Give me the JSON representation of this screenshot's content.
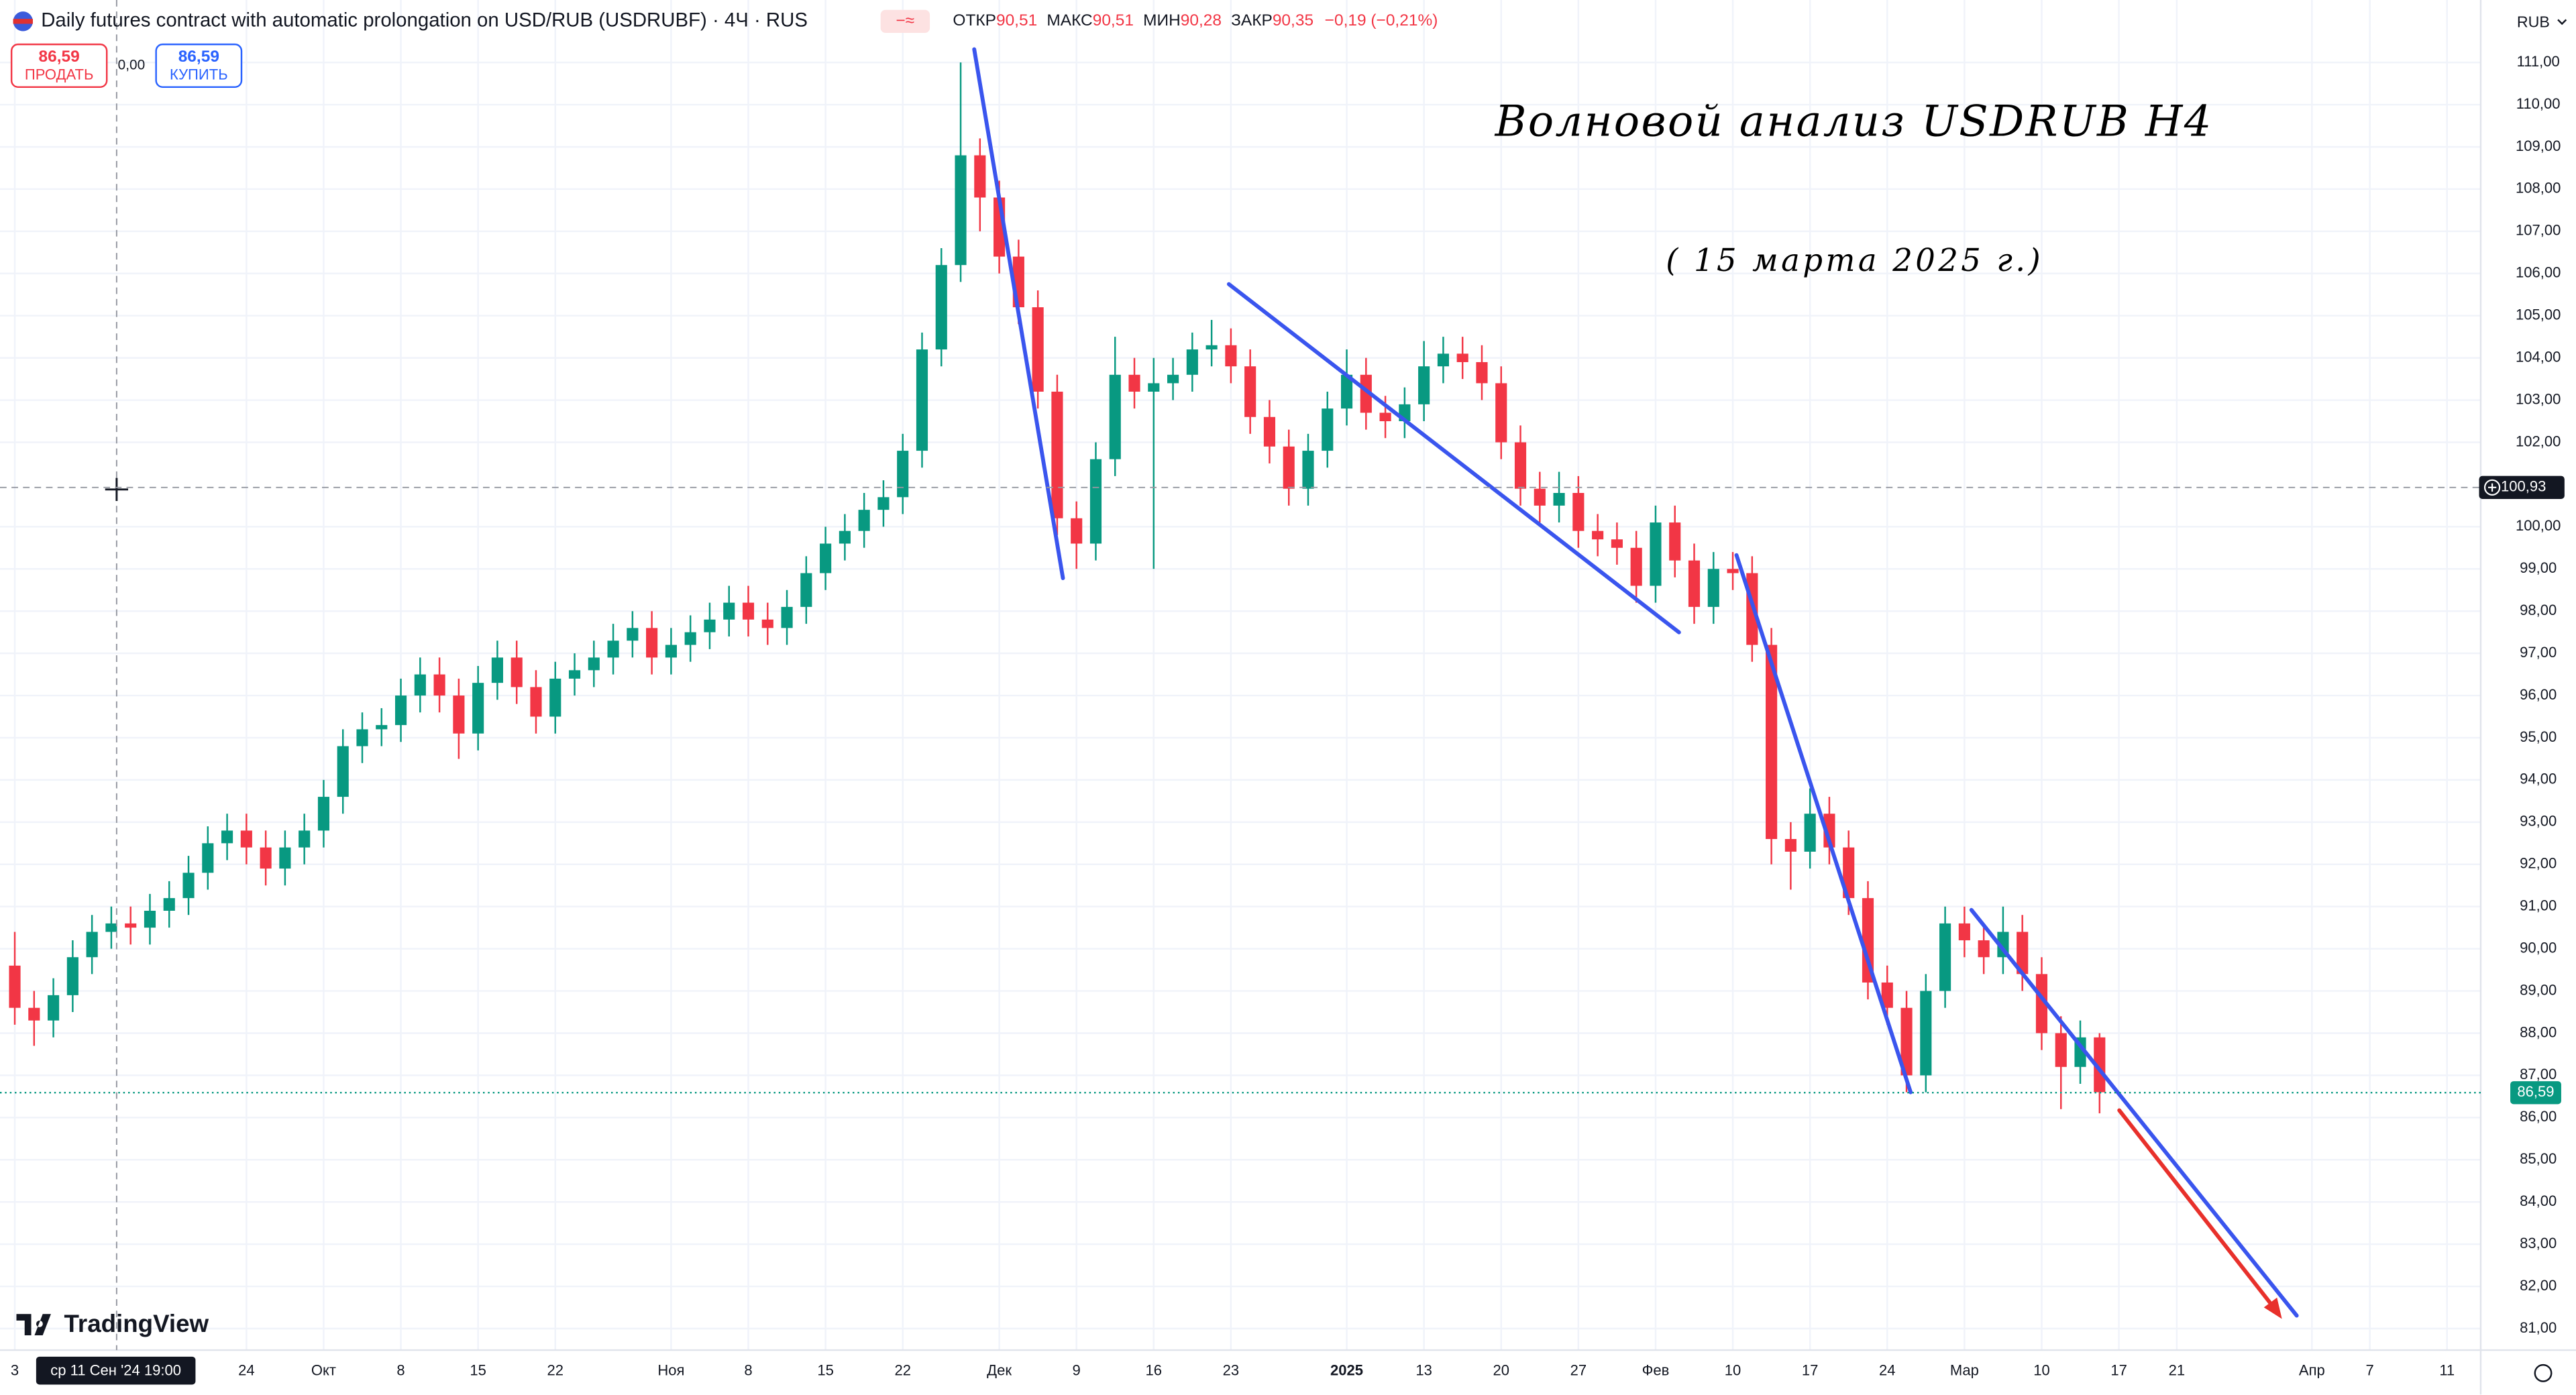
{
  "header": {
    "title": "Daily futures contract with automatic prolongation on USD/RUB (USDRUBF) · 4Ч · RUS",
    "ohlc": [
      {
        "label": "ОТКР",
        "value": "90,51"
      },
      {
        "label": "МАКС",
        "value": "90,51"
      },
      {
        "label": "МИН",
        "value": "90,28"
      },
      {
        "label": "ЗАКР",
        "value": "90,35"
      }
    ],
    "change": "−0,19 (−0,21%)"
  },
  "trade": {
    "sell_price": "86,59",
    "sell_label": "ПРОДАТЬ",
    "spread": "0,00",
    "buy_price": "86,59",
    "buy_label": "КУПИТЬ"
  },
  "branding": "TradingView",
  "chart_data": {
    "type": "candlestick",
    "currency": "RUB",
    "grid": true,
    "up_color": "#089981",
    "down_color": "#f23645",
    "annotations": [
      "Волновой анализ USDRUB H4",
      "( 15 марта 2025 г.)"
    ],
    "crosshair": {
      "price": {
        "value": 100.93,
        "label": "100,93"
      },
      "time": "ср 11 Сен '24 19:00"
    },
    "last_price": {
      "value": 86.59,
      "label": "86,59"
    },
    "ylim": [
      80.49,
      112.48
    ],
    "yticks": [
      {
        "value": 81,
        "label": "81,00"
      },
      {
        "value": 82,
        "label": "82,00"
      },
      {
        "value": 83,
        "label": "83,00"
      },
      {
        "value": 84,
        "label": "84,00"
      },
      {
        "value": 85,
        "label": "85,00"
      },
      {
        "value": 86,
        "label": "86,00"
      },
      {
        "value": 87,
        "label": "87,00"
      },
      {
        "value": 88,
        "label": "88,00"
      },
      {
        "value": 89,
        "label": "89,00"
      },
      {
        "value": 90,
        "label": "90,00"
      },
      {
        "value": 91,
        "label": "91,00"
      },
      {
        "value": 92,
        "label": "92,00"
      },
      {
        "value": 93,
        "label": "93,00"
      },
      {
        "value": 94,
        "label": "94,00"
      },
      {
        "value": 95,
        "label": "95,00"
      },
      {
        "value": 96,
        "label": "96,00"
      },
      {
        "value": 97,
        "label": "97,00"
      },
      {
        "value": 98,
        "label": "98,00"
      },
      {
        "value": 99,
        "label": "99,00"
      },
      {
        "value": 100,
        "label": "100,00"
      },
      {
        "value": 102,
        "label": "102,00"
      },
      {
        "value": 103,
        "label": "103,00"
      },
      {
        "value": 104,
        "label": "104,00"
      },
      {
        "value": 105,
        "label": "105,00"
      },
      {
        "value": 106,
        "label": "106,00"
      },
      {
        "value": 107,
        "label": "107,00"
      },
      {
        "value": 108,
        "label": "108,00"
      },
      {
        "value": 109,
        "label": "109,00"
      },
      {
        "value": 110,
        "label": "110,00"
      },
      {
        "value": 111,
        "label": "111,00"
      }
    ],
    "categories": [
      "3",
      null,
      null,
      null,
      null,
      null,
      null,
      null,
      null,
      null,
      null,
      null,
      "24",
      null,
      null,
      null,
      "Окт",
      null,
      null,
      null,
      "8",
      null,
      null,
      null,
      "15",
      null,
      null,
      null,
      "22",
      null,
      null,
      null,
      null,
      null,
      "Ноя",
      null,
      null,
      null,
      "8",
      null,
      null,
      null,
      "15",
      null,
      null,
      null,
      "22",
      null,
      null,
      null,
      null,
      "Дек",
      null,
      null,
      null,
      "9",
      null,
      null,
      null,
      "16",
      null,
      null,
      null,
      "23",
      null,
      null,
      null,
      null,
      null,
      "2025",
      null,
      null,
      null,
      "13",
      null,
      null,
      null,
      "20",
      null,
      null,
      null,
      "27",
      null,
      null,
      null,
      "Фев",
      null,
      null,
      null,
      "10",
      null,
      null,
      null,
      "17",
      null,
      null,
      null,
      "24",
      null,
      null,
      null,
      "Мар",
      null,
      null,
      null,
      "10",
      null,
      null,
      null,
      "17",
      null,
      null,
      "21",
      null,
      null,
      null,
      null,
      null,
      null,
      "Апр",
      null,
      null,
      "7",
      null,
      null,
      null,
      "11"
    ],
    "open": [
      89.6,
      88.6,
      88.3,
      88.9,
      89.8,
      90.4,
      90.6,
      90.5,
      90.9,
      91.2,
      91.8,
      92.5,
      92.8,
      92.4,
      91.9,
      92.4,
      92.8,
      93.6,
      94.8,
      95.2,
      95.3,
      96.0,
      96.5,
      96.0,
      95.1,
      96.3,
      96.9,
      96.2,
      95.5,
      96.4,
      96.6,
      96.9,
      97.3,
      97.6,
      96.9,
      97.2,
      97.5,
      97.8,
      98.2,
      97.8,
      97.6,
      98.1,
      98.9,
      99.6,
      99.9,
      100.4,
      100.7,
      101.8,
      104.2,
      106.2,
      108.8,
      107.8,
      106.4,
      105.2,
      103.2,
      100.2,
      99.6,
      101.6,
      103.6,
      103.2,
      103.4,
      103.6,
      104.2,
      104.3,
      103.8,
      102.6,
      101.9,
      100.9,
      101.8,
      102.8,
      103.6,
      102.7,
      102.5,
      102.9,
      103.8,
      104.1,
      103.9,
      103.4,
      102.0,
      100.9,
      100.5,
      100.8,
      99.9,
      99.7,
      99.5,
      98.6,
      100.1,
      99.2,
      98.1,
      99.0,
      98.9,
      97.2,
      92.6,
      92.3,
      93.2,
      92.4,
      91.2,
      89.2,
      88.6,
      87.0,
      89.0,
      90.6,
      90.2,
      89.8,
      90.4,
      89.4,
      88.0,
      87.2,
      87.9,
      null,
      null,
      null,
      null,
      null,
      null,
      null,
      null,
      null,
      null,
      null,
      null,
      null,
      null,
      null,
      null,
      null,
      null
    ],
    "high": [
      90.4,
      89.0,
      89.3,
      90.2,
      90.8,
      91.0,
      91.0,
      91.3,
      91.6,
      92.2,
      92.9,
      93.2,
      93.2,
      92.8,
      92.8,
      93.2,
      94.0,
      95.2,
      95.6,
      95.7,
      96.4,
      96.9,
      96.9,
      96.4,
      96.7,
      97.3,
      97.3,
      96.6,
      96.8,
      97.0,
      97.3,
      97.7,
      98.0,
      98.0,
      97.6,
      97.9,
      98.2,
      98.6,
      98.6,
      98.2,
      98.5,
      99.3,
      100.0,
      100.3,
      100.8,
      101.1,
      102.2,
      104.6,
      106.6,
      111.0,
      109.2,
      108.2,
      106.8,
      105.6,
      103.6,
      100.6,
      102.0,
      104.5,
      104.0,
      104.0,
      104.0,
      104.6,
      104.9,
      104.7,
      104.2,
      103.0,
      102.3,
      102.2,
      103.2,
      104.2,
      104.0,
      103.1,
      103.3,
      104.4,
      104.5,
      104.5,
      104.3,
      103.8,
      102.4,
      101.3,
      101.3,
      101.2,
      100.3,
      100.1,
      99.9,
      100.5,
      100.5,
      99.6,
      99.4,
      99.4,
      99.3,
      97.6,
      93.0,
      93.8,
      93.6,
      92.8,
      91.6,
      89.6,
      89.0,
      89.4,
      91.0,
      91.0,
      90.6,
      91.0,
      90.8,
      89.8,
      88.4,
      88.3,
      88.0,
      null,
      null,
      null,
      null,
      null,
      null,
      null,
      null,
      null,
      null,
      null,
      null,
      null,
      null,
      null,
      null,
      null,
      null
    ],
    "low": [
      88.2,
      87.7,
      87.9,
      88.5,
      89.4,
      90.0,
      90.1,
      90.1,
      90.5,
      90.8,
      91.4,
      92.1,
      92.0,
      91.5,
      91.5,
      92.0,
      92.4,
      93.2,
      94.4,
      94.8,
      94.9,
      95.6,
      95.6,
      94.5,
      94.7,
      95.9,
      95.8,
      95.1,
      95.1,
      96.0,
      96.2,
      96.5,
      96.9,
      96.5,
      96.5,
      96.8,
      97.1,
      97.4,
      97.4,
      97.2,
      97.2,
      97.7,
      98.5,
      99.2,
      99.5,
      100.0,
      100.3,
      101.4,
      103.8,
      105.8,
      107.0,
      106.0,
      104.8,
      102.8,
      99.8,
      99.0,
      99.2,
      101.2,
      102.8,
      99.0,
      103.0,
      103.2,
      103.8,
      103.4,
      102.2,
      101.5,
      100.5,
      100.5,
      101.4,
      102.4,
      102.3,
      102.1,
      102.1,
      102.5,
      103.4,
      103.5,
      103.0,
      101.6,
      100.5,
      100.1,
      100.1,
      99.5,
      99.3,
      99.1,
      98.2,
      98.2,
      98.8,
      97.7,
      97.7,
      98.5,
      96.8,
      92.0,
      91.4,
      91.9,
      92.0,
      90.8,
      88.8,
      88.2,
      86.6,
      86.6,
      88.6,
      89.8,
      89.4,
      89.4,
      89.0,
      87.6,
      86.2,
      86.8,
      86.1,
      null,
      null,
      null,
      null,
      null,
      null,
      null,
      null,
      null,
      null,
      null,
      null,
      null,
      null,
      null,
      null,
      null,
      null
    ],
    "close": [
      88.6,
      88.3,
      88.9,
      89.8,
      90.4,
      90.6,
      90.5,
      90.9,
      91.2,
      91.8,
      92.5,
      92.8,
      92.4,
      91.9,
      92.4,
      92.8,
      93.6,
      94.8,
      95.2,
      95.3,
      96.0,
      96.5,
      96.0,
      95.1,
      96.3,
      96.9,
      96.2,
      95.5,
      96.4,
      96.6,
      96.9,
      97.3,
      97.6,
      96.9,
      97.2,
      97.5,
      97.8,
      98.2,
      97.8,
      97.6,
      98.1,
      98.9,
      99.6,
      99.9,
      100.4,
      100.7,
      101.8,
      104.2,
      106.2,
      108.8,
      107.8,
      106.4,
      105.2,
      103.2,
      100.2,
      99.6,
      101.6,
      103.6,
      103.2,
      103.4,
      103.6,
      104.2,
      104.3,
      103.8,
      102.6,
      101.9,
      100.9,
      101.8,
      102.8,
      103.6,
      102.7,
      102.5,
      102.9,
      103.8,
      104.1,
      103.9,
      103.4,
      102.0,
      100.9,
      100.5,
      100.8,
      99.9,
      99.7,
      99.5,
      98.6,
      100.1,
      99.2,
      98.1,
      99.0,
      98.9,
      97.2,
      92.6,
      92.3,
      93.2,
      92.4,
      91.2,
      89.2,
      88.6,
      87.0,
      89.0,
      90.6,
      90.2,
      89.8,
      90.4,
      89.4,
      88.0,
      87.2,
      87.9,
      86.6,
      null,
      null,
      null,
      null,
      null,
      null,
      null,
      null,
      null,
      null,
      null,
      null,
      null,
      null,
      null,
      null,
      null,
      null
    ]
  }
}
